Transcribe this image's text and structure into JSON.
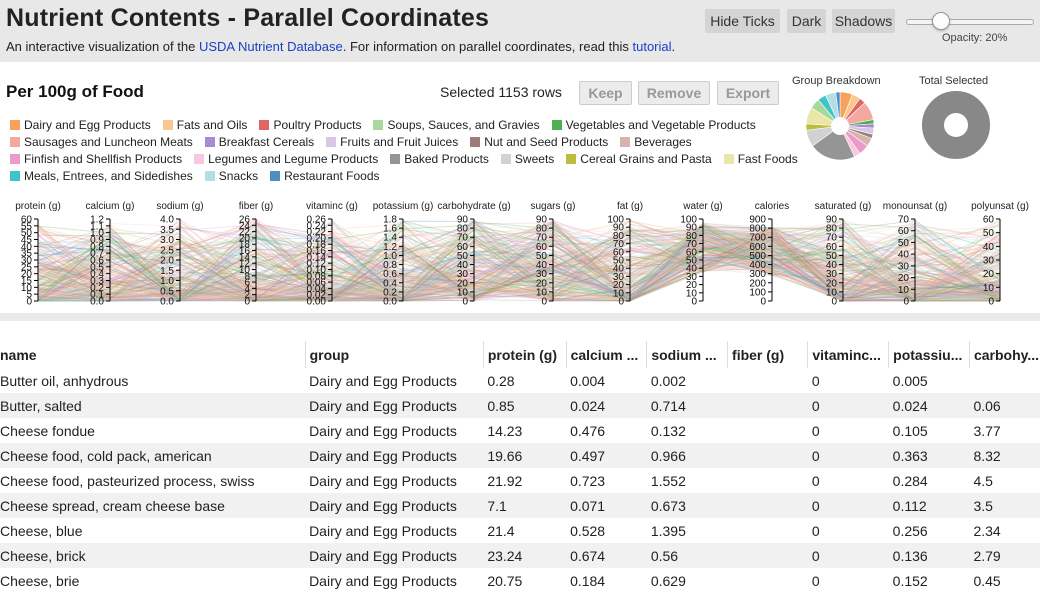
{
  "header": {
    "title": "Nutrient Contents - Parallel Coordinates",
    "subtitle_prefix": "An interactive visualization of the ",
    "link_usda": "USDA Nutrient Database",
    "subtitle_mid": ". For information on parallel coordinates, read this ",
    "link_tutorial": "tutorial",
    "subtitle_end": ".",
    "buttons": [
      "Hide Ticks",
      "Dark",
      "Shadows"
    ],
    "opacity_label": "Opacity: 20%",
    "opacity_value": 0.2
  },
  "panel": {
    "title": "Per 100g of Food",
    "selected_text": "Selected 1153 rows",
    "actions": [
      "Keep",
      "Remove",
      "Export"
    ],
    "group_breakdown_label": "Group Breakdown",
    "total_selected_label": "Total Selected"
  },
  "legend": [
    [
      {
        "label": "Dairy and Egg Products",
        "color": "#f7a15a"
      },
      {
        "label": "Fats and Oils",
        "color": "#fcc68f"
      },
      {
        "label": "Poultry Products",
        "color": "#e06666"
      },
      {
        "label": "Soups, Sauces, and Gravies",
        "color": "#a8d99a"
      },
      {
        "label": "Vegetables and Vegetable Products",
        "color": "#4caf50"
      }
    ],
    [
      {
        "label": "Sausages and Luncheon Meats",
        "color": "#f3a8a0"
      },
      {
        "label": "Breakfast Cereals",
        "color": "#a88ad1"
      },
      {
        "label": "Fruits and Fruit Juices",
        "color": "#d8c6e8"
      },
      {
        "label": "Nut and Seed Products",
        "color": "#9c7d78"
      },
      {
        "label": "Beverages",
        "color": "#d5b4b0"
      }
    ],
    [
      {
        "label": "Finfish and Shellfish Products",
        "color": "#ec9ac8"
      },
      {
        "label": "Legumes and Legume Products",
        "color": "#f8c8df"
      },
      {
        "label": "Baked Products",
        "color": "#959595"
      },
      {
        "label": "Sweets",
        "color": "#d2d2d2"
      },
      {
        "label": "Cereal Grains and Pasta",
        "color": "#bcbd3c"
      },
      {
        "label": "Fast Foods",
        "color": "#e8e6a8"
      }
    ],
    [
      {
        "label": "Meals, Entrees, and Sidedishes",
        "color": "#40c4cc"
      },
      {
        "label": "Snacks",
        "color": "#b4dde6"
      },
      {
        "label": "Restaurant Foods",
        "color": "#4d8ec7"
      }
    ]
  ],
  "group_breakdown": [
    {
      "group": "Dairy and Egg Products",
      "value": 6,
      "color": "#f7a15a"
    },
    {
      "group": "Fats and Oils",
      "value": 4,
      "color": "#fcc68f"
    },
    {
      "group": "Poultry Products",
      "value": 3,
      "color": "#e06666"
    },
    {
      "group": "Sausages and Luncheon Meats",
      "value": 9,
      "color": "#f3a8a0"
    },
    {
      "group": "Vegetables and Vegetable Products",
      "value": 2,
      "color": "#4caf50"
    },
    {
      "group": "Breakfast Cereals",
      "value": 2,
      "color": "#a88ad1"
    },
    {
      "group": "Fruits and Fruit Juices",
      "value": 3,
      "color": "#d8c6e8"
    },
    {
      "group": "Nut and Seed Products",
      "value": 2,
      "color": "#9c7d78"
    },
    {
      "group": "Beverages",
      "value": 4,
      "color": "#d5b4b0"
    },
    {
      "group": "Finfish and Shellfish Products",
      "value": 5,
      "color": "#ec9ac8"
    },
    {
      "group": "Legumes and Legume Products",
      "value": 3,
      "color": "#f8c8df"
    },
    {
      "group": "Baked Products",
      "value": 22,
      "color": "#959595"
    },
    {
      "group": "Sweets",
      "value": 8,
      "color": "#d2d2d2"
    },
    {
      "group": "Cereal Grains and Pasta",
      "value": 3,
      "color": "#bcbd3c"
    },
    {
      "group": "Fast Foods",
      "value": 8,
      "color": "#e8e6a8"
    },
    {
      "group": "Soups, Sauces, and Gravies",
      "value": 5,
      "color": "#a8d99a"
    },
    {
      "group": "Meals, Entrees, and Sidedishes",
      "value": 4,
      "color": "#40c4cc"
    },
    {
      "group": "Snacks",
      "value": 5,
      "color": "#b4dde6"
    },
    {
      "group": "Restaurant Foods",
      "value": 2,
      "color": "#4d8ec7"
    }
  ],
  "total_selected_fraction": 1.0,
  "chart_data": {
    "type": "parallel-coordinates",
    "axes": [
      {
        "label": "protein (g)",
        "ticks": [
          "60",
          "55",
          "50",
          "45",
          "40",
          "35",
          "30",
          "25",
          "20",
          "15",
          "10",
          "5",
          "0"
        ]
      },
      {
        "label": "calcium (g)",
        "ticks": [
          "1.2",
          "1.1",
          "1.0",
          "0.9",
          "0.8",
          "0.7",
          "0.6",
          "0.5",
          "0.4",
          "0.3",
          "0.2",
          "0.1",
          "0.0"
        ]
      },
      {
        "label": "sodium (g)",
        "ticks": [
          "4.0",
          "3.5",
          "3.0",
          "2.5",
          "2.0",
          "1.5",
          "1.0",
          "0.5",
          "0.0"
        ]
      },
      {
        "label": "fiber (g)",
        "ticks": [
          "26",
          "24",
          "22",
          "20",
          "18",
          "16",
          "14",
          "12",
          "10",
          "8",
          "6",
          "4",
          "2",
          "0"
        ]
      },
      {
        "label": "vitaminc (g)",
        "ticks": [
          "0.26",
          "0.24",
          "0.22",
          "0.20",
          "0.18",
          "0.16",
          "0.14",
          "0.12",
          "0.10",
          "0.08",
          "0.06",
          "0.04",
          "0.02",
          "0.00"
        ]
      },
      {
        "label": "potassium (g)",
        "ticks": [
          "1.8",
          "1.6",
          "1.4",
          "1.2",
          "1.0",
          "0.8",
          "0.6",
          "0.4",
          "0.2",
          "0.0"
        ]
      },
      {
        "label": "carbohydrate (g)",
        "ticks": [
          "90",
          "80",
          "70",
          "60",
          "50",
          "40",
          "30",
          "20",
          "10",
          "0"
        ]
      },
      {
        "label": "sugars (g)",
        "ticks": [
          "90",
          "80",
          "70",
          "60",
          "50",
          "40",
          "30",
          "20",
          "10",
          "0"
        ]
      },
      {
        "label": "fat (g)",
        "ticks": [
          "100",
          "90",
          "80",
          "70",
          "60",
          "50",
          "40",
          "30",
          "20",
          "10",
          "0"
        ]
      },
      {
        "label": "water (g)",
        "ticks": [
          "100",
          "90",
          "80",
          "70",
          "60",
          "50",
          "40",
          "30",
          "20",
          "10",
          "0"
        ]
      },
      {
        "label": "calories",
        "ticks": [
          "900",
          "800",
          "700",
          "600",
          "500",
          "400",
          "300",
          "200",
          "100",
          "0"
        ]
      },
      {
        "label": "saturated (g)",
        "ticks": [
          "90",
          "80",
          "70",
          "60",
          "50",
          "40",
          "30",
          "20",
          "10",
          "0"
        ]
      },
      {
        "label": "monounsat (g)",
        "ticks": [
          "70",
          "60",
          "50",
          "40",
          "30",
          "20",
          "10",
          "0"
        ]
      },
      {
        "label": "polyunsat (g)",
        "ticks": [
          "60",
          "50",
          "40",
          "30",
          "20",
          "10",
          "0"
        ]
      }
    ]
  },
  "table": {
    "columns": [
      "name",
      "group",
      "protein (g)",
      "calcium ...",
      "sodium ...",
      "fiber (g)",
      "vitaminc...",
      "potassiu...",
      "carbohy..."
    ],
    "rows": [
      [
        "Butter oil, anhydrous",
        "Dairy and Egg Products",
        "0.28",
        "0.004",
        "0.002",
        "",
        "0",
        "0.005",
        ""
      ],
      [
        "Butter, salted",
        "Dairy and Egg Products",
        "0.85",
        "0.024",
        "0.714",
        "",
        "0",
        "0.024",
        "0.06"
      ],
      [
        "Cheese fondue",
        "Dairy and Egg Products",
        "14.23",
        "0.476",
        "0.132",
        "",
        "0",
        "0.105",
        "3.77"
      ],
      [
        "Cheese food, cold pack, american",
        "Dairy and Egg Products",
        "19.66",
        "0.497",
        "0.966",
        "",
        "0",
        "0.363",
        "8.32"
      ],
      [
        "Cheese food, pasteurized process, swiss",
        "Dairy and Egg Products",
        "21.92",
        "0.723",
        "1.552",
        "",
        "0",
        "0.284",
        "4.5"
      ],
      [
        "Cheese spread, cream cheese base",
        "Dairy and Egg Products",
        "7.1",
        "0.071",
        "0.673",
        "",
        "0",
        "0.112",
        "3.5"
      ],
      [
        "Cheese, blue",
        "Dairy and Egg Products",
        "21.4",
        "0.528",
        "1.395",
        "",
        "0",
        "0.256",
        "2.34"
      ],
      [
        "Cheese, brick",
        "Dairy and Egg Products",
        "23.24",
        "0.674",
        "0.56",
        "",
        "0",
        "0.136",
        "2.79"
      ],
      [
        "Cheese, brie",
        "Dairy and Egg Products",
        "20.75",
        "0.184",
        "0.629",
        "",
        "0",
        "0.152",
        "0.45"
      ]
    ]
  }
}
